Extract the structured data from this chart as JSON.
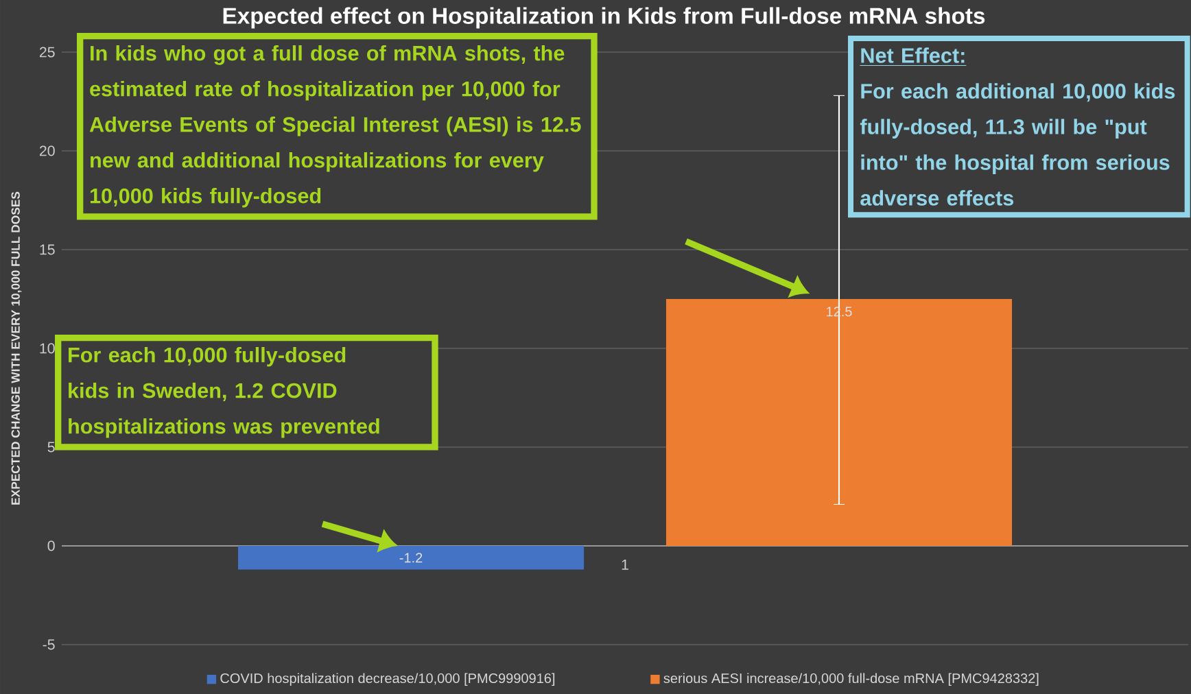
{
  "chart_data": {
    "type": "bar",
    "title": "Expected effect on Hospitalization in Kids from Full-dose mRNA shots",
    "ylabel": "EXPECTED CHANGE WITH EVERY 10,000 FULL DOSES",
    "categories": [
      "1"
    ],
    "series": [
      {
        "name": "COVID hospitalization decrease/10,000 [PMC9990916]",
        "color": "#4472c4",
        "values": [
          -1.2
        ]
      },
      {
        "name": "serious AESI increase/10,000 full-dose mRNA [PMC9428332]",
        "color": "#ed7d31",
        "values": [
          12.5
        ],
        "errors": [
          [
            2.1,
            22.8
          ]
        ]
      }
    ],
    "ylim": [
      -5,
      25
    ],
    "yticks": [
      -5,
      0,
      5,
      10,
      15,
      20,
      25
    ],
    "grid": "y",
    "legend": "bottom",
    "data_labels": true,
    "annotations": [
      "In kids who got a full dose of mRNA shots, the estimated rate of hospitalization per 10,000 for Adverse Events of Special Interest (AESI) is 12.5 new and additional hospitalizations for every 10,000 kids fully-dosed",
      "For each 10,000 fully-dosed kids in Sweden, 1.2 COVID hospitalizations was prevented",
      "Net Effect:",
      "For each additional 10,000 kids fully-dosed, 11.3 will be \"put into\" the hospital from serious adverse effects"
    ]
  }
}
